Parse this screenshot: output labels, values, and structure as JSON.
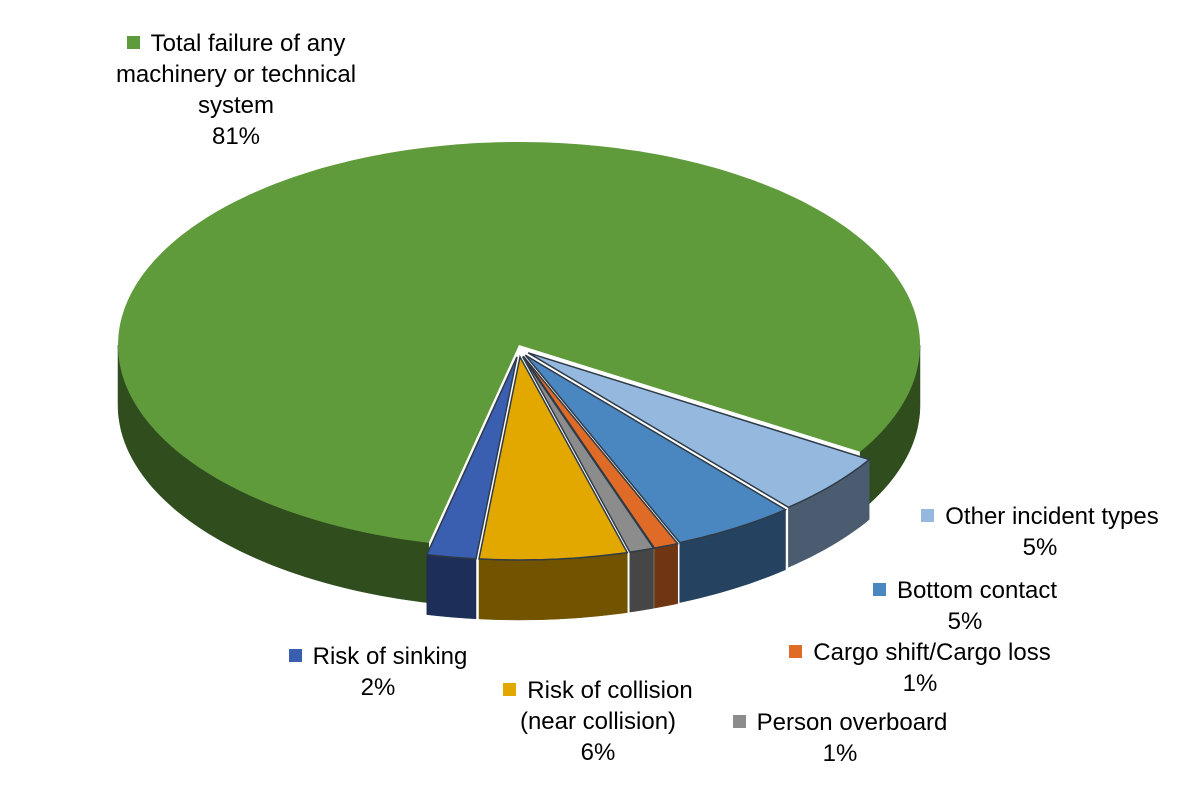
{
  "chart_data": {
    "type": "pie",
    "categories": [
      "Total failure of any machinery or technical system",
      "Other incident types",
      "Bottom contact",
      "Cargo shift/Cargo loss",
      "Person overboard",
      "Risk of collision (near collision)",
      "Risk of sinking"
    ],
    "values": [
      81,
      5,
      5,
      1,
      1,
      6,
      2
    ],
    "value_labels": [
      "81%",
      "5%",
      "5%",
      "1%",
      "1%",
      "6%",
      "2%"
    ],
    "colors": [
      "#5f9a3b",
      "#95b8df",
      "#4a86c0",
      "#e06b26",
      "#8c8c8c",
      "#e3a800",
      "#3a5eb0"
    ],
    "three_d": true
  }
}
